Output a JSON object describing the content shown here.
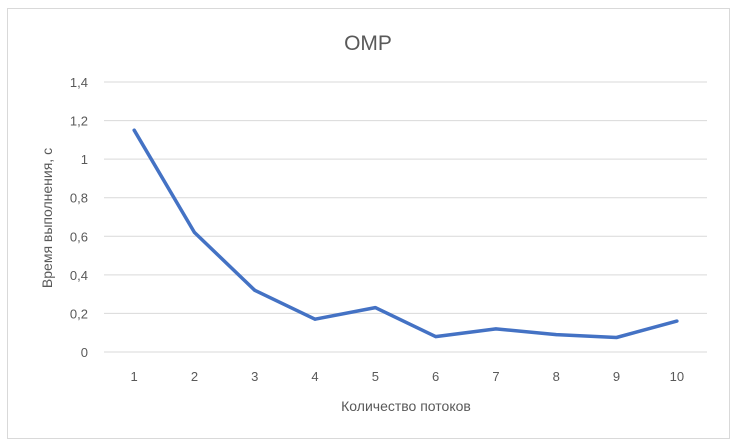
{
  "chart_data": {
    "type": "line",
    "title": "OMP",
    "xlabel": "Количество потоков",
    "ylabel": "Время выполнения, с",
    "categories": [
      "1",
      "2",
      "3",
      "4",
      "5",
      "6",
      "7",
      "8",
      "9",
      "10"
    ],
    "series": [
      {
        "values": [
          1.15,
          0.62,
          0.32,
          0.17,
          0.23,
          0.08,
          0.12,
          0.09,
          0.075,
          0.16
        ]
      }
    ],
    "ylim": [
      0,
      1.4
    ],
    "yticks": [
      "0",
      "0,2",
      "0,4",
      "0,6",
      "0,8",
      "1",
      "1,2",
      "1,4"
    ],
    "ytick_values": [
      0,
      0.2,
      0.4,
      0.6,
      0.8,
      1.0,
      1.2,
      1.4
    ],
    "grid": true,
    "legend": "none",
    "colors": {
      "line": "#4472c4",
      "grid": "#d9d9d9",
      "text": "#595959"
    }
  }
}
